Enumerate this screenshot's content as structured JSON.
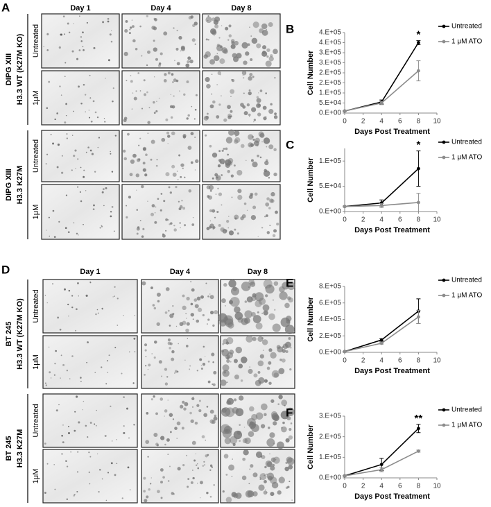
{
  "image_figures": [
    {
      "panel_label": "A",
      "columns": [
        "Day 1",
        "Day 4",
        "Day 8"
      ],
      "groups": [
        {
          "lines": [
            "DIPG XIII",
            "H3.3 WT  (K27M KO)"
          ],
          "rows": [
            "Untreated",
            "1μM"
          ]
        },
        {
          "lines": [
            "DIPG XIII",
            "H3.3 K27M"
          ],
          "rows": [
            "Untreated",
            "1μM"
          ]
        }
      ]
    },
    {
      "panel_label": "D",
      "columns": [
        "Day 1",
        "Day 4",
        "Day 8"
      ],
      "groups": [
        {
          "lines": [
            "BT 245",
            "H3.3 WT  (K27M KO)"
          ],
          "rows": [
            "Untreated",
            "1μM"
          ]
        },
        {
          "lines": [
            "BT 245",
            "H3.3 K27M"
          ],
          "rows": [
            "Untreated",
            "1μM"
          ]
        }
      ]
    }
  ],
  "chart_data": [
    {
      "type": "line",
      "panel_label": "B",
      "xlabel": "Days Post Treatment",
      "ylabel": "Cell Number",
      "annotation": "*",
      "x": [
        0,
        4,
        8
      ],
      "xlim": [
        0,
        10
      ],
      "xticks": [
        0,
        2,
        4,
        6,
        8,
        10
      ],
      "ylim": [
        0,
        400000
      ],
      "yticks": [
        {
          "value": 0,
          "label": "0.E+00"
        },
        {
          "value": 50000,
          "label": "5.E+04"
        },
        {
          "value": 100000,
          "label": "1.E+05"
        },
        {
          "value": 150000,
          "label": "2.E+05"
        },
        {
          "value": 200000,
          "label": "2.E+05"
        },
        {
          "value": 250000,
          "label": "3.E+05"
        },
        {
          "value": 300000,
          "label": "3.E+05"
        },
        {
          "value": 350000,
          "label": "4.E+05"
        },
        {
          "value": 400000,
          "label": "4.E+05"
        }
      ],
      "series": [
        {
          "name": "Untreated",
          "color": "#000000",
          "values": [
            10000,
            55000,
            350000
          ],
          "errors": [
            2000,
            10000,
            10000
          ]
        },
        {
          "name": "1 μM ATO",
          "color": "#8c8c8c",
          "values": [
            10000,
            50000,
            210000
          ],
          "errors": [
            2000,
            8000,
            50000
          ]
        }
      ]
    },
    {
      "type": "line",
      "panel_label": "C",
      "xlabel": "Days Post Treatment",
      "ylabel": "Cell Number",
      "annotation": "*",
      "x": [
        0,
        4,
        8
      ],
      "xlim": [
        0,
        10
      ],
      "xticks": [
        0,
        2,
        4,
        6,
        8,
        10
      ],
      "ylim": [
        0,
        125000
      ],
      "yticks": [
        {
          "value": 0,
          "label": "0.E+00"
        },
        {
          "value": 50000,
          "label": "5.E+04"
        },
        {
          "value": 100000,
          "label": "1.E+05"
        }
      ],
      "series": [
        {
          "name": "Untreated",
          "color": "#000000",
          "values": [
            10000,
            17000,
            85000
          ],
          "errors": [
            1000,
            6000,
            35000
          ]
        },
        {
          "name": "1 μM ATO",
          "color": "#8c8c8c",
          "values": [
            10000,
            12000,
            18000
          ],
          "errors": [
            1000,
            4000,
            18000
          ]
        }
      ]
    },
    {
      "type": "line",
      "panel_label": "E",
      "xlabel": "Days Post Treatment",
      "ylabel": "Cell Number",
      "x": [
        0,
        4,
        8
      ],
      "xlim": [
        0,
        10
      ],
      "xticks": [
        0,
        2,
        4,
        6,
        8,
        10
      ],
      "ylim": [
        0,
        800000
      ],
      "yticks": [
        {
          "value": 0,
          "label": "0.E+00"
        },
        {
          "value": 200000,
          "label": "2.E+05"
        },
        {
          "value": 400000,
          "label": "4.E+05"
        },
        {
          "value": 600000,
          "label": "6.E+05"
        },
        {
          "value": 800000,
          "label": "8.E+05"
        }
      ],
      "series": [
        {
          "name": "Untreated",
          "color": "#000000",
          "values": [
            10000,
            150000,
            500000
          ],
          "errors": [
            2000,
            15000,
            150000
          ]
        },
        {
          "name": "1 μM ATO",
          "color": "#8c8c8c",
          "values": [
            10000,
            110000,
            430000
          ],
          "errors": [
            2000,
            10000,
            80000
          ]
        }
      ]
    },
    {
      "type": "line",
      "panel_label": "F",
      "xlabel": "Days Post Treatment",
      "ylabel": "Cell Number",
      "annotation": "**",
      "x": [
        0,
        4,
        8
      ],
      "xlim": [
        0,
        10
      ],
      "xticks": [
        0,
        2,
        4,
        6,
        8,
        10
      ],
      "ylim": [
        0,
        300000
      ],
      "yticks": [
        {
          "value": 0,
          "label": "0.E+00"
        },
        {
          "value": 100000,
          "label": "1.E+05"
        },
        {
          "value": 200000,
          "label": "2.E+05"
        },
        {
          "value": 300000,
          "label": "3.E+05"
        }
      ],
      "series": [
        {
          "name": "Untreated",
          "color": "#000000",
          "values": [
            10000,
            65000,
            240000
          ],
          "errors": [
            2000,
            30000,
            20000
          ]
        },
        {
          "name": "1 μM ATO",
          "color": "#8c8c8c",
          "values": [
            10000,
            40000,
            130000
          ],
          "errors": [
            2000,
            10000,
            5000
          ]
        }
      ]
    }
  ]
}
